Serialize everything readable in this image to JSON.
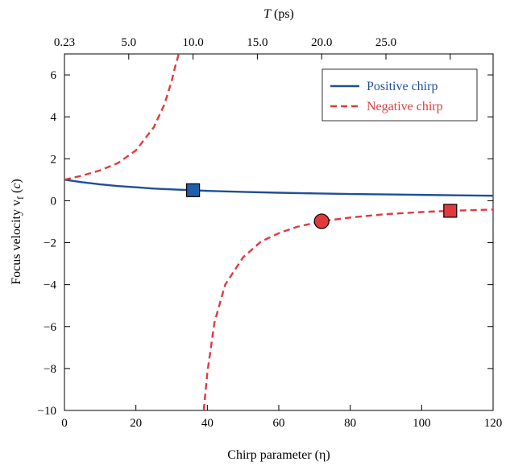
{
  "chart_data": {
    "type": "line",
    "xlabel": "Chirp parameter (η)",
    "ylabel_main": "Focus velocity v",
    "ylabel_sub": "f",
    "ylabel_unit_open": " (",
    "ylabel_unit": "c",
    "ylabel_unit_close": ")",
    "top_xlabel_var": "T",
    "top_xlabel_unit": " (ps)",
    "xlim": [
      0,
      120
    ],
    "ylim": [
      -10,
      7
    ],
    "x_ticks": [
      0,
      20,
      40,
      60,
      80,
      100,
      120
    ],
    "x_tick_labels": [
      "0",
      "20",
      "40",
      "60",
      "80",
      "100",
      "120"
    ],
    "y_ticks": [
      -10,
      -8,
      -6,
      -4,
      -2,
      0,
      2,
      4,
      6
    ],
    "y_tick_labels": [
      "−10",
      "−8",
      "−6",
      "−4",
      "−2",
      "0",
      "2",
      "4",
      "6"
    ],
    "top_ticks_eta": [
      0,
      18,
      36,
      54,
      72,
      90,
      108
    ],
    "top_tick_labels": [
      "0.23",
      "5.0",
      "10.0",
      "15.0",
      "20.0",
      "25.0",
      ""
    ],
    "grid": false,
    "legend_position": "top-right",
    "series": [
      {
        "name": "Positive chirp",
        "color": "#1f4e9a",
        "style": "solid",
        "x": [
          0,
          5,
          10,
          15,
          20,
          25,
          30,
          36,
          40,
          50,
          60,
          70,
          80,
          90,
          100,
          110,
          120
        ],
        "y": [
          1.0,
          0.88,
          0.78,
          0.7,
          0.64,
          0.58,
          0.54,
          0.5,
          0.47,
          0.42,
          0.38,
          0.35,
          0.32,
          0.3,
          0.28,
          0.26,
          0.24
        ]
      },
      {
        "name": "Negative chirp",
        "color": "#e0393e",
        "style": "dashed",
        "branches": [
          {
            "x": [
              0,
              5,
              10,
              15,
              20,
              25,
              28,
              30,
              31,
              32
            ],
            "y": [
              1.0,
              1.2,
              1.45,
              1.8,
              2.4,
              3.5,
              4.6,
              5.7,
              6.4,
              7.0
            ]
          },
          {
            "x": [
              39,
              40,
              42,
              45,
              50,
              55,
              60,
              65,
              72,
              80,
              90,
              100,
              108,
              120
            ],
            "y": [
              -10.0,
              -8.2,
              -5.8,
              -4.0,
              -2.7,
              -1.95,
              -1.55,
              -1.25,
              -0.98,
              -0.8,
              -0.64,
              -0.54,
              -0.48,
              -0.42
            ]
          }
        ]
      }
    ],
    "markers": [
      {
        "shape": "square",
        "x": 36,
        "y": 0.5,
        "color": "#1f5fa8"
      },
      {
        "shape": "circle",
        "x": 72,
        "y": -0.98,
        "color": "#e0393e"
      },
      {
        "shape": "square",
        "x": 108,
        "y": -0.48,
        "color": "#e0393e"
      }
    ]
  }
}
